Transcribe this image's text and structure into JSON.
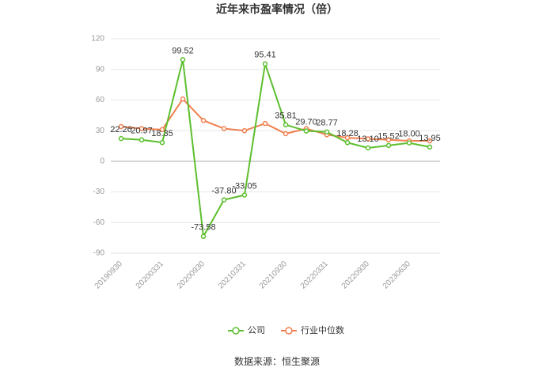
{
  "chart_data": {
    "type": "line",
    "title": "近年来市盈率情况（倍）",
    "categories": [
      "20190930",
      null,
      "20200331",
      null,
      "20200930",
      null,
      "20210331",
      null,
      "20210930",
      null,
      "20220331",
      null,
      "20220930",
      null,
      "20230630",
      null
    ],
    "series": [
      {
        "name": "公司",
        "color": "#5cbf2e",
        "values": [
          22.26,
          20.97,
          18.35,
          99.52,
          -73.58,
          -37.8,
          -33.05,
          95.41,
          35.81,
          29.7,
          28.77,
          18.28,
          13.1,
          15.52,
          18.0,
          13.95
        ],
        "value_labels": [
          "22.26",
          "20.97",
          "18.35",
          "99.52",
          "-73.58",
          "-37.80",
          "-33.05",
          "95.41",
          "35.81",
          "29.70",
          "28.77",
          "18.28",
          "13.10",
          "15.52",
          "18.00",
          "13.95"
        ]
      },
      {
        "name": "行业中位数",
        "color": "#f0804f",
        "values": [
          34,
          32,
          31,
          61,
          40,
          32,
          30,
          37,
          27,
          32,
          26,
          23,
          22,
          21,
          20,
          20
        ]
      }
    ],
    "ylim": [
      -90,
      120
    ],
    "yticks": [
      -90,
      -60,
      -30,
      0,
      30,
      60,
      90,
      120
    ],
    "grid": true,
    "legend": "bottom",
    "source": "数据来源：恒生聚源"
  }
}
